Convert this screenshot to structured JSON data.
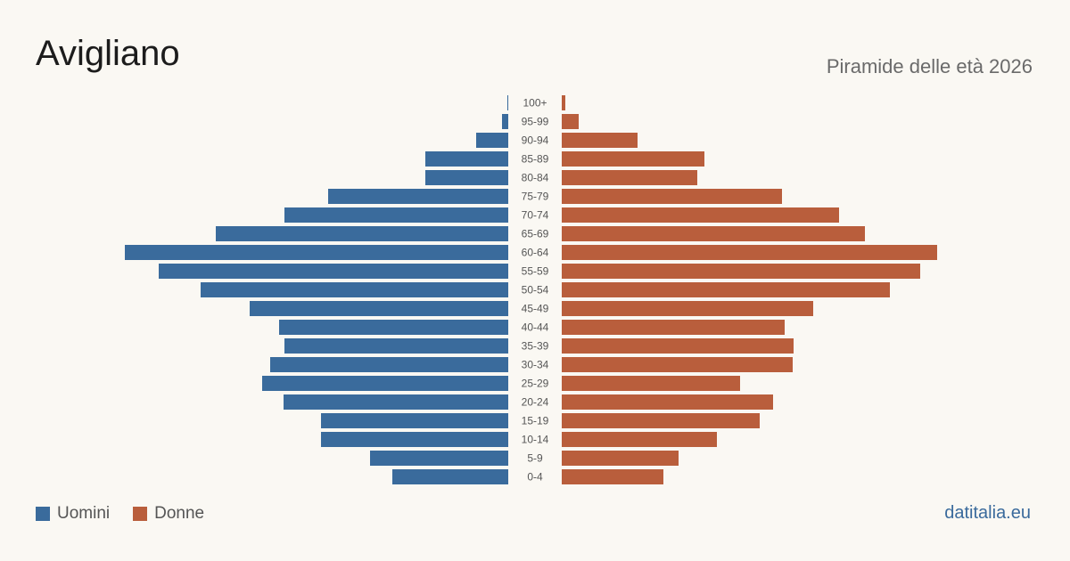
{
  "header": {
    "title": "Avigliano",
    "subtitle": "Piramide delle età 2026"
  },
  "legend": {
    "men_label": "Uomini",
    "women_label": "Donne"
  },
  "footer": {
    "source": "datitalia.eu"
  },
  "colors": {
    "men": "#3a6b9c",
    "women": "#b95e3c",
    "background": "#faf8f3"
  },
  "chart_data": {
    "type": "bar",
    "orientation": "horizontal-pyramid",
    "title": "Avigliano",
    "subtitle": "Piramide delle età 2026",
    "categories": [
      "100+",
      "95-99",
      "90-94",
      "85-89",
      "80-84",
      "75-79",
      "70-74",
      "65-69",
      "60-64",
      "55-59",
      "50-54",
      "45-49",
      "40-44",
      "35-39",
      "30-34",
      "25-29",
      "20-24",
      "15-19",
      "10-14",
      "5-9",
      "0-4"
    ],
    "series": [
      {
        "name": "Uomini",
        "values": [
          1,
          7,
          36,
          93,
          93,
          202,
          251,
          328,
          430,
          392,
          345,
          290,
          257,
          251,
          267,
          276,
          252,
          210,
          210,
          155,
          130
        ]
      },
      {
        "name": "Donne",
        "values": [
          4,
          19,
          85,
          160,
          152,
          247,
          311,
          340,
          421,
          402,
          368,
          282,
          250,
          260,
          259,
          200,
          237,
          222,
          174,
          131,
          114
        ]
      }
    ],
    "grid": false,
    "legend_position": "bottom-left"
  }
}
